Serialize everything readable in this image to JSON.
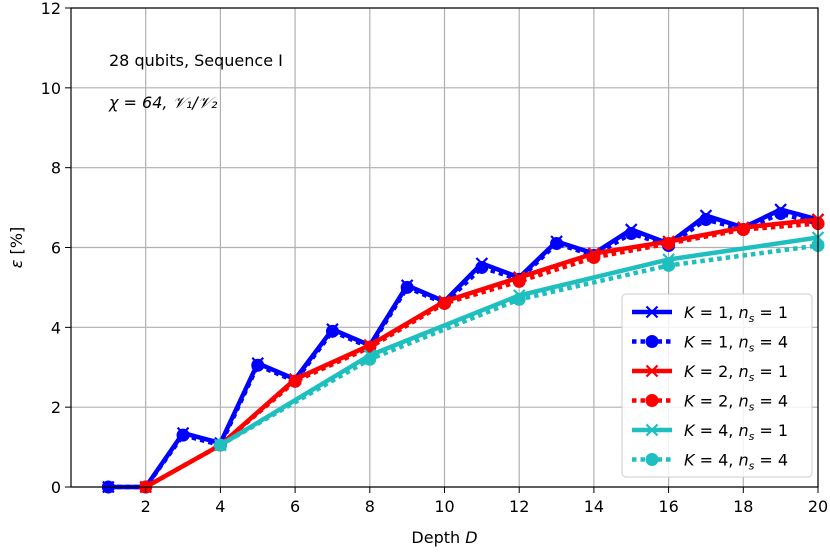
{
  "chart_data": {
    "type": "line",
    "xlabel": "Depth D",
    "ylabel": "ε [%]",
    "xlim": [
      0,
      20
    ],
    "ylim": [
      0,
      12
    ],
    "xticks": [
      2,
      4,
      6,
      8,
      10,
      12,
      14,
      16,
      18,
      20
    ],
    "yticks": [
      0,
      2,
      4,
      6,
      8,
      10,
      12
    ],
    "grid": true,
    "legend_position": "lower-right",
    "annotations": [
      "28 qubits, Sequence I",
      "χ = 64, 𝒱₁/𝒱₂"
    ],
    "series": [
      {
        "name": "K = 1, n_s = 1",
        "color": "#0000ff",
        "style": "solid",
        "marker": "x",
        "x": [
          1,
          2,
          3,
          4,
          5,
          6,
          7,
          8,
          9,
          10,
          11,
          12,
          13,
          14,
          15,
          16,
          17,
          18,
          19,
          20
        ],
        "y": [
          0,
          0,
          1.35,
          1.1,
          3.1,
          2.7,
          3.95,
          3.55,
          5.05,
          4.65,
          5.6,
          5.25,
          6.15,
          5.85,
          6.45,
          6.1,
          6.8,
          6.5,
          6.95,
          6.7
        ]
      },
      {
        "name": "K = 1, n_s = 4",
        "color": "#0000ff",
        "style": "dotted",
        "marker": "o",
        "x": [
          1,
          2,
          3,
          4,
          5,
          6,
          7,
          8,
          9,
          10,
          11,
          12,
          13,
          14,
          15,
          16,
          17,
          18,
          19,
          20
        ],
        "y": [
          0,
          0,
          1.3,
          1.05,
          3.05,
          2.65,
          3.9,
          3.5,
          5.0,
          4.6,
          5.5,
          5.2,
          6.1,
          5.8,
          6.35,
          6.05,
          6.7,
          6.45,
          6.85,
          6.6
        ]
      },
      {
        "name": "K = 2, n_s = 1",
        "color": "#ff0000",
        "style": "solid",
        "marker": "x",
        "x": [
          2,
          4,
          6,
          8,
          10,
          12,
          14,
          16,
          18,
          20
        ],
        "y": [
          0,
          1.05,
          2.7,
          3.55,
          4.65,
          5.25,
          5.85,
          6.15,
          6.5,
          6.7
        ]
      },
      {
        "name": "K = 2, n_s = 4",
        "color": "#ff0000",
        "style": "dotted",
        "marker": "o",
        "x": [
          2,
          4,
          6,
          8,
          10,
          12,
          14,
          16,
          18,
          20
        ],
        "y": [
          0,
          1.05,
          2.65,
          3.5,
          4.6,
          5.15,
          5.75,
          6.1,
          6.45,
          6.6
        ]
      },
      {
        "name": "K = 4, n_s = 1",
        "color": "#1fbfbf",
        "style": "solid",
        "marker": "x",
        "x": [
          4,
          8,
          12,
          16,
          20
        ],
        "y": [
          1.05,
          3.3,
          4.8,
          5.7,
          6.25
        ]
      },
      {
        "name": "K = 4, n_s = 4",
        "color": "#1fbfbf",
        "style": "dotted",
        "marker": "o",
        "x": [
          4,
          8,
          12,
          16,
          20
        ],
        "y": [
          1.05,
          3.2,
          4.7,
          5.55,
          6.05
        ]
      }
    ]
  }
}
